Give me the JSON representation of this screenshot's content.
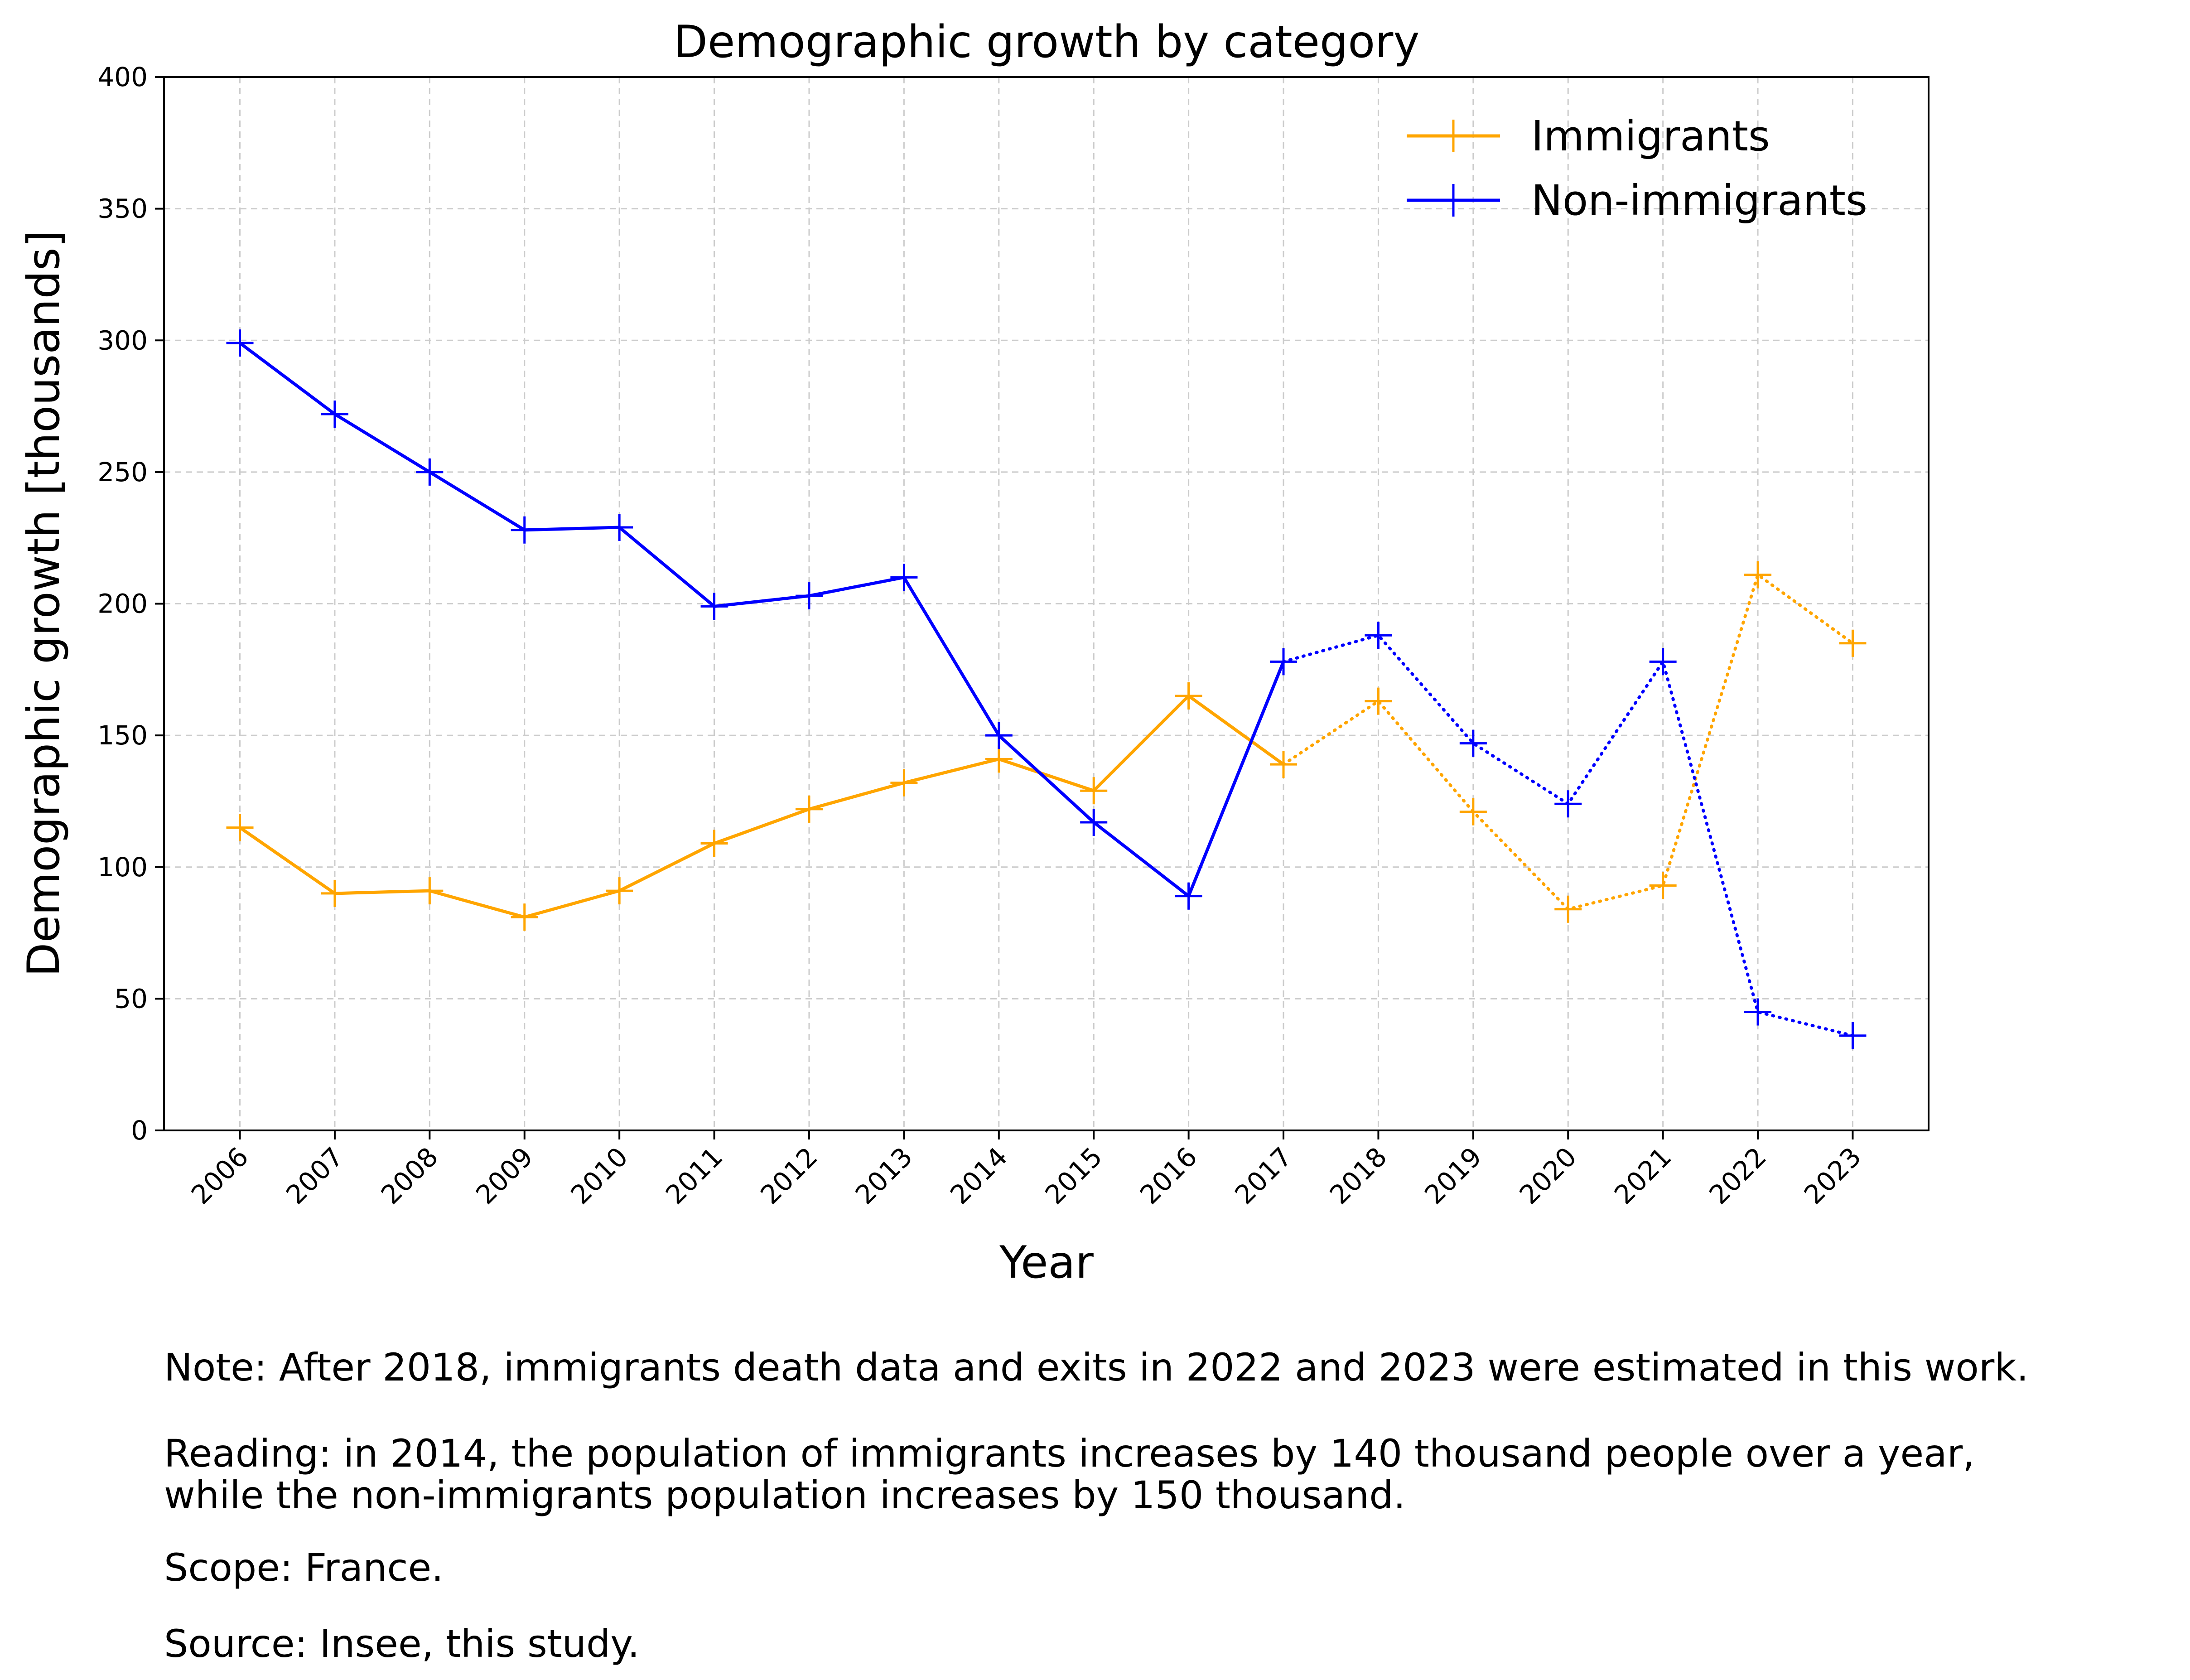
{
  "chart_data": {
    "type": "line",
    "title": "Demographic growth by category",
    "xlabel": "Year",
    "ylabel": "Demographic growth [thousands]",
    "x": [
      2006,
      2007,
      2008,
      2009,
      2010,
      2011,
      2012,
      2013,
      2014,
      2015,
      2016,
      2017,
      2018,
      2019,
      2020,
      2021,
      2022,
      2023
    ],
    "xlim": [
      2005.2,
      2023.8
    ],
    "ylim": [
      0,
      400
    ],
    "yticks": [
      0,
      50,
      100,
      150,
      200,
      250,
      300,
      350,
      400
    ],
    "grid": true,
    "legend_position": "top-right",
    "solid_until_year": 2017,
    "dotted_from_year": 2017,
    "series": [
      {
        "name": "Immigrants",
        "color": "#FFA500",
        "values": [
          115,
          90,
          91,
          81,
          91,
          109,
          122,
          132,
          141,
          129,
          165,
          139,
          163,
          121,
          84,
          93,
          211,
          185
        ]
      },
      {
        "name": "Non-immigrants",
        "color": "#0000FF",
        "values": [
          299,
          272,
          250,
          228,
          229,
          199,
          203,
          210,
          150,
          117,
          89,
          178,
          188,
          147,
          124,
          178,
          45,
          36
        ]
      }
    ]
  },
  "notes": {
    "note": "Note: After 2018, immigrants death data and exits in 2022 and 2023 were estimated in this work.",
    "reading_line1": "Reading: in 2014, the population of immigrants increases by 140 thousand people over a year,",
    "reading_line2": "while the non-immigrants population increases by 150 thousand.",
    "scope": "Scope: France.",
    "source": "Source: Insee, this study."
  }
}
